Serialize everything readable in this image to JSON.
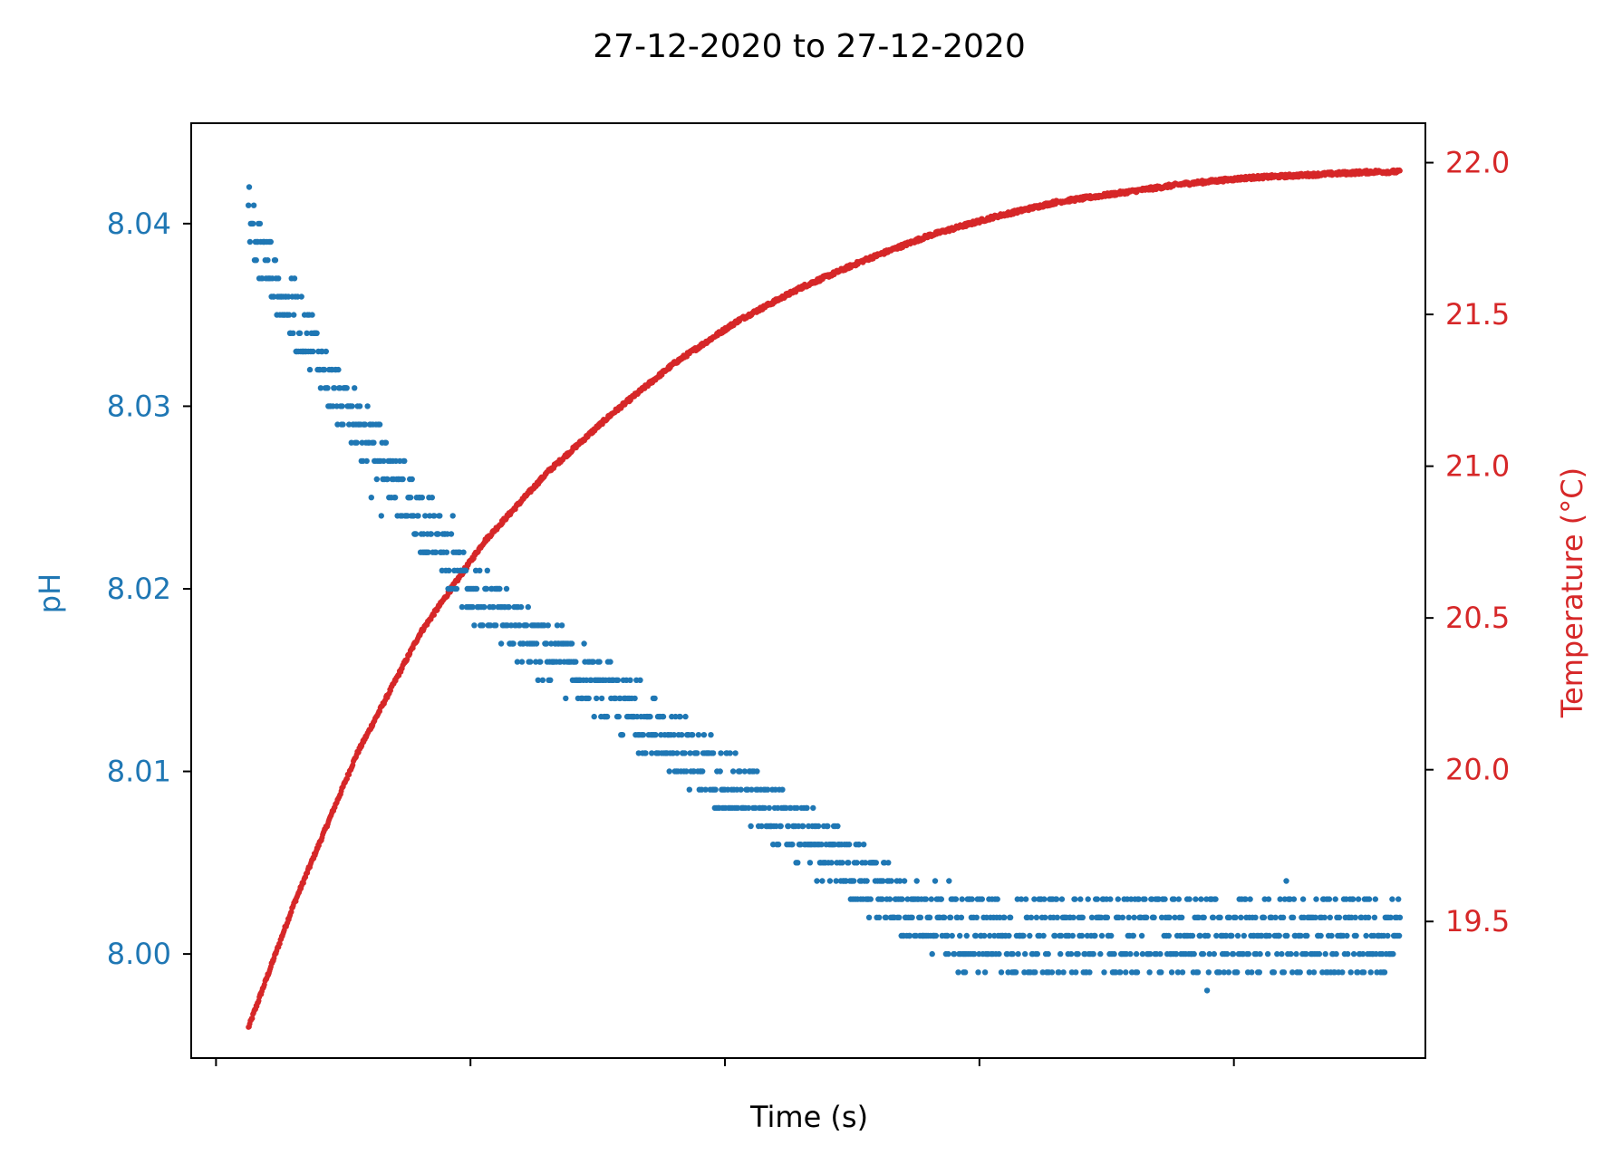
{
  "chart_data": {
    "type": "scatter",
    "title": "27-12-2020 to 27-12-2020",
    "xlabel": "Time (s)",
    "x_tick_labels": [
      "",
      "",
      "",
      "",
      ""
    ],
    "x_tick_positions": [
      -0.105,
      1.895,
      3.895,
      5.895,
      7.895
    ],
    "xlim": [
      -0.3,
      9.4
    ],
    "x_range": [
      0.15,
      9.2
    ],
    "left_axis": {
      "label": "pH",
      "color": "#1f77b4",
      "ylim": [
        7.9943,
        8.0455
      ],
      "ticks": [
        8.0,
        8.01,
        8.02,
        8.03,
        8.04
      ],
      "tick_labels": [
        "8.00",
        "8.01",
        "8.02",
        "8.03",
        "8.04"
      ]
    },
    "right_axis": {
      "label": "Temperature (°C)",
      "color": "#d62728",
      "ylim": [
        19.05,
        22.13
      ],
      "ticks": [
        19.5,
        20.0,
        20.5,
        21.0,
        21.5,
        22.0
      ],
      "tick_labels": [
        "19.5",
        "20.0",
        "20.5",
        "21.0",
        "21.5",
        "22.0"
      ]
    },
    "series": [
      {
        "axis": "left",
        "color": "#1f77b4",
        "points": [
          [
            0.15,
            8.041
          ],
          [
            0.2,
            8.039
          ],
          [
            0.3,
            8.038
          ],
          [
            0.4,
            8.036
          ],
          [
            0.5,
            8.035
          ],
          [
            0.6,
            8.034
          ],
          [
            0.7,
            8.033
          ],
          [
            0.8,
            8.031
          ],
          [
            0.9,
            8.03
          ],
          [
            1.0,
            8.029
          ],
          [
            1.1,
            8.028
          ],
          [
            1.2,
            8.027
          ],
          [
            1.3,
            8.026
          ],
          [
            1.4,
            8.025
          ],
          [
            1.5,
            8.024
          ],
          [
            1.6,
            8.023
          ],
          [
            1.7,
            8.022
          ],
          [
            1.8,
            8.021
          ],
          [
            1.9,
            8.02
          ],
          [
            2.0,
            8.019
          ],
          [
            2.2,
            8.018
          ],
          [
            2.4,
            8.017
          ],
          [
            2.6,
            8.016
          ],
          [
            2.8,
            8.015
          ],
          [
            3.0,
            8.014
          ],
          [
            3.2,
            8.013
          ],
          [
            3.4,
            8.012
          ],
          [
            3.6,
            8.011
          ],
          [
            3.8,
            8.01
          ],
          [
            4.0,
            8.009
          ],
          [
            4.2,
            8.008
          ],
          [
            4.4,
            8.007
          ],
          [
            4.6,
            8.006
          ],
          [
            4.8,
            8.005
          ],
          [
            5.0,
            8.004
          ],
          [
            5.2,
            8.003
          ],
          [
            5.4,
            8.002
          ],
          [
            5.6,
            8.002
          ],
          [
            5.8,
            8.001
          ],
          [
            6.0,
            8.001
          ],
          [
            6.5,
            8.001
          ],
          [
            7.0,
            8.001
          ],
          [
            7.5,
            8.001
          ],
          [
            8.0,
            8.001
          ],
          [
            8.5,
            8.001
          ],
          [
            9.0,
            8.001
          ],
          [
            9.2,
            8.001
          ]
        ]
      },
      {
        "axis": "right",
        "color": "#d62728",
        "points": [
          [
            0.15,
            19.15
          ],
          [
            0.5,
            19.55
          ],
          [
            1.0,
            20.05
          ],
          [
            1.5,
            20.45
          ],
          [
            2.0,
            20.75
          ],
          [
            2.5,
            20.98
          ],
          [
            3.0,
            21.17
          ],
          [
            3.5,
            21.34
          ],
          [
            4.0,
            21.48
          ],
          [
            4.5,
            21.59
          ],
          [
            5.0,
            21.68
          ],
          [
            5.5,
            21.76
          ],
          [
            6.0,
            21.82
          ],
          [
            6.5,
            21.87
          ],
          [
            7.0,
            21.9
          ],
          [
            7.5,
            21.93
          ],
          [
            8.0,
            21.95
          ],
          [
            8.5,
            21.96
          ],
          [
            9.0,
            21.97
          ],
          [
            9.2,
            21.97
          ]
        ]
      }
    ],
    "grid": false,
    "legend": "none"
  }
}
